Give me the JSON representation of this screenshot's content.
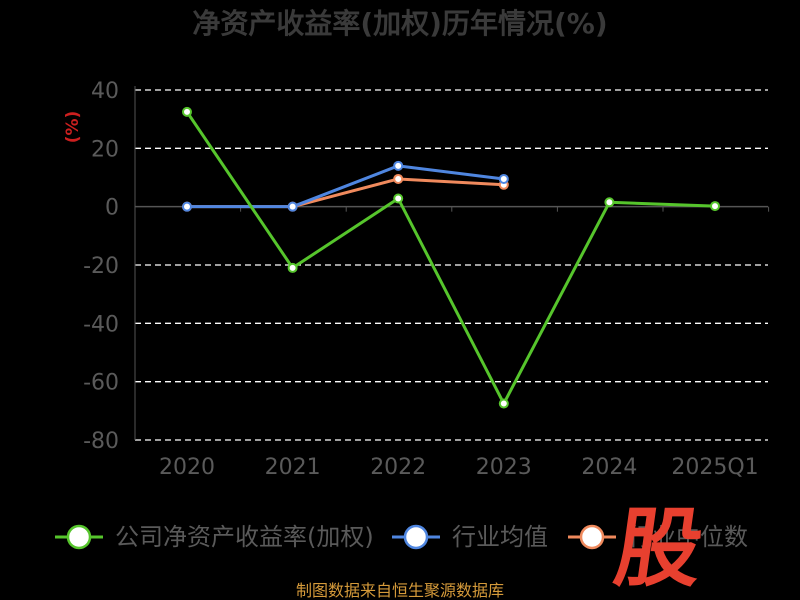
{
  "chart_data": {
    "type": "line",
    "title": "净资产收益率(加权)历年情况(%)",
    "ylabel": "(%)",
    "xlabel": "",
    "categories": [
      "2020",
      "2021",
      "2022",
      "2023",
      "2024",
      "2025Q1"
    ],
    "ylim": [
      -80,
      40
    ],
    "yticks": [
      "40",
      "20",
      "0",
      "-20",
      "-40",
      "-60",
      "-80"
    ],
    "grid": true,
    "legend_position": "bottom",
    "series": [
      {
        "name": "公司净资产收益率(加权)",
        "color": "#56c52c",
        "values": [
          32.5,
          -21,
          2.8,
          -67.5,
          1.5,
          0.2
        ]
      },
      {
        "name": "行业均值",
        "color": "#4f86e0",
        "values": [
          0,
          0,
          14,
          9.5,
          null,
          null
        ]
      },
      {
        "name": "行业中位数",
        "color": "#f08a5d",
        "values": [
          0,
          0,
          9.5,
          7.5,
          null,
          null
        ]
      }
    ]
  },
  "source": "制图数据来自恒生聚源数据库",
  "watermark": "股"
}
